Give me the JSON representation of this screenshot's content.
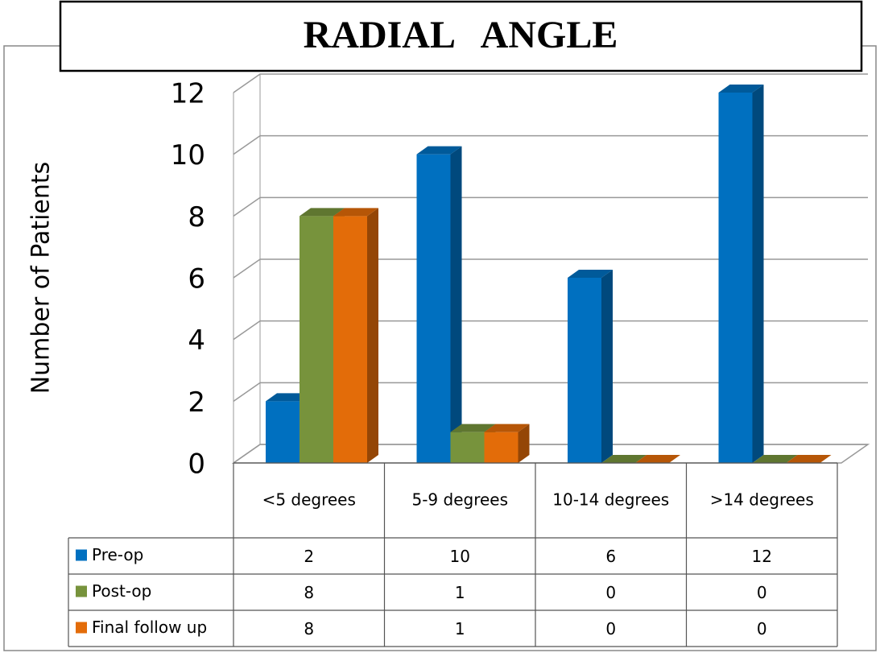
{
  "chart_data": {
    "type": "bar3d",
    "title": "RADIAL ANGLE",
    "y_label": "Number of Patients",
    "categories": [
      "<5 degrees",
      "5-9 degrees",
      "10-14 degrees",
      ">14 degrees"
    ],
    "series": [
      {
        "name": "Pre-op",
        "color": "#0070c0",
        "values": [
          2,
          10,
          6,
          12
        ]
      },
      {
        "name": "Post-op",
        "color": "#77933c",
        "values": [
          8,
          1,
          0,
          0
        ]
      },
      {
        "name": "Final follow up",
        "color": "#e36c09",
        "values": [
          8,
          1,
          0,
          0
        ]
      }
    ],
    "ylim": [
      0,
      12
    ],
    "yticks": [
      0,
      2,
      4,
      6,
      8,
      10,
      12
    ],
    "grid": true,
    "legend": "table"
  }
}
